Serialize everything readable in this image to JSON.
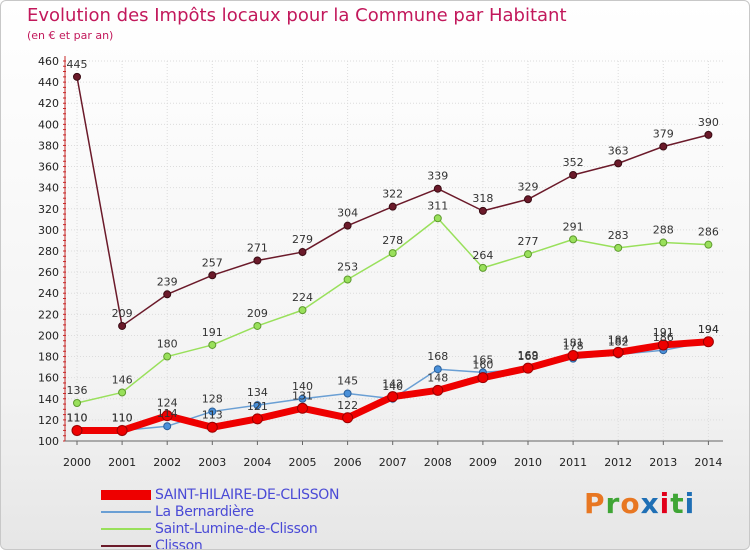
{
  "title": "Evolution des Impôts locaux pour la Commune par Habitant",
  "subtitle": "(en € et par an)",
  "logo": {
    "text": "Proxiti",
    "colors": [
      "#e87722",
      "#3fa535",
      "#e87722",
      "#1f6fb5",
      "#e2001a",
      "#3fa535",
      "#1f6fb5"
    ]
  },
  "chart_data": {
    "type": "line",
    "title": "Evolution des Impôts locaux pour la Commune par Habitant",
    "ylabel": "(en € et par an)",
    "xlabel": "",
    "ylim": [
      100,
      460
    ],
    "yticks": [
      100,
      120,
      140,
      160,
      180,
      200,
      220,
      240,
      260,
      280,
      300,
      320,
      340,
      360,
      380,
      400,
      420,
      440,
      460
    ],
    "grid": true,
    "x": [
      "2000",
      "2001",
      "2002",
      "2003",
      "2004",
      "2005",
      "2006",
      "2007",
      "2008",
      "2009",
      "2010",
      "2011",
      "2012",
      "2013",
      "2014"
    ],
    "series": [
      {
        "name": "SAINT-HILAIRE-DE-CLISSON",
        "color": "#ee0000",
        "values": [
          110,
          110,
          124,
          113,
          121,
          131,
          122,
          142,
          148,
          160,
          169,
          181,
          184,
          191,
          194
        ]
      },
      {
        "name": "La Bernardière",
        "color": "#6a9fd4",
        "values": [
          110,
          110,
          114,
          128,
          134,
          140,
          145,
          140,
          168,
          165,
          168,
          178,
          182,
          186,
          194
        ]
      },
      {
        "name": "Saint-Lumine-de-Clisson",
        "color": "#99e05b",
        "values": [
          136,
          146,
          180,
          191,
          209,
          224,
          253,
          278,
          311,
          264,
          277,
          291,
          283,
          288,
          286
        ]
      },
      {
        "name": "Clisson",
        "color": "#6b1a2a",
        "values": [
          445,
          209,
          239,
          257,
          271,
          279,
          304,
          322,
          339,
          318,
          329,
          352,
          363,
          379,
          390
        ]
      }
    ]
  }
}
